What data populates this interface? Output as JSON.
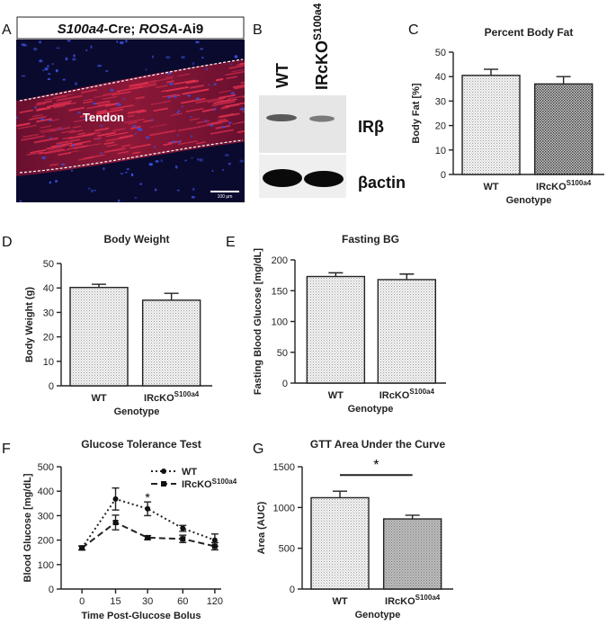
{
  "panels": {
    "a": "A",
    "b": "B",
    "c": "C",
    "d": "D",
    "e": "E",
    "f": "F",
    "g": "G"
  },
  "micro": {
    "title_gene": "S100a4",
    "title_mid": "-Cre; ",
    "title_rosa": "ROSA",
    "title_end": "-Ai9",
    "tissue_label": "Tendon",
    "scale_bar": "100 µm",
    "colors": {
      "background": "#0a0a2e",
      "fibers": "#e0304f",
      "nuclei": "#3a4fd8"
    }
  },
  "blot": {
    "lane1": "WT",
    "lane2": "IRcKO",
    "lane2_sup": "S100a4",
    "band1": "IRβ",
    "band2": "βactin"
  },
  "chart_data": [
    {
      "id": "C",
      "type": "bar",
      "title": "Percent Body Fat",
      "ylabel": "Body Fat [%]",
      "xlabel": "Genotype",
      "categories": [
        "WT",
        "IRcKO"
      ],
      "category_sup": [
        "",
        "S100a4"
      ],
      "values": [
        40.5,
        37
      ],
      "errors": [
        2.5,
        3
      ],
      "ylim": [
        0,
        50
      ],
      "yticks": [
        0,
        10,
        20,
        30,
        40,
        50
      ],
      "fills": [
        "light",
        "dark"
      ]
    },
    {
      "id": "D",
      "type": "bar",
      "title": "Body Weight",
      "ylabel": "Body Weight (g)",
      "xlabel": "Genotype",
      "categories": [
        "WT",
        "IRcKO"
      ],
      "category_sup": [
        "",
        "S100a4"
      ],
      "values": [
        40.2,
        35
      ],
      "errors": [
        1.3,
        2.8
      ],
      "ylim": [
        0,
        50
      ],
      "yticks": [
        0,
        10,
        20,
        30,
        40,
        50
      ],
      "fills": [
        "light",
        "light"
      ]
    },
    {
      "id": "E",
      "type": "bar",
      "title": "Fasting BG",
      "ylabel": "Fasting Blood Glucose [mg/dL]",
      "xlabel": "Genotype",
      "categories": [
        "WT",
        "IRcKO"
      ],
      "category_sup": [
        "",
        "S100a4"
      ],
      "values": [
        173,
        168
      ],
      "errors": [
        6,
        9
      ],
      "ylim": [
        0,
        200
      ],
      "yticks": [
        0,
        50,
        100,
        150,
        200
      ],
      "fills": [
        "light",
        "light"
      ]
    },
    {
      "id": "F",
      "type": "line",
      "title": "Glucose Tolerance Test",
      "ylabel": "Blood Glucose [mg/dL]",
      "xlabel": "Time Post-Glucose Bolus",
      "x": [
        0,
        15,
        30,
        60,
        120
      ],
      "xticks": [
        "0",
        "15",
        "30",
        "60",
        "120"
      ],
      "ylim": [
        0,
        500
      ],
      "yticks": [
        0,
        100,
        200,
        300,
        400,
        500
      ],
      "annotation": "*",
      "annotation_x": 30,
      "annotation_y": 375,
      "series": [
        {
          "name": "WT",
          "sup": "",
          "values": [
            168,
            368,
            328,
            248,
            200
          ],
          "errors": [
            8,
            45,
            28,
            12,
            25
          ],
          "style": "dotted-circle"
        },
        {
          "name": "IRcKO",
          "sup": "S100a4",
          "values": [
            168,
            272,
            210,
            205,
            175
          ],
          "errors": [
            8,
            30,
            8,
            15,
            15
          ],
          "style": "dashed-square"
        }
      ]
    },
    {
      "id": "G",
      "type": "bar",
      "title": "GTT Area Under the Curve",
      "ylabel": "Area (AUC)",
      "xlabel": "Genotype",
      "categories": [
        "WT",
        "IRcKO"
      ],
      "category_sup": [
        "",
        "S100a4"
      ],
      "values": [
        1120,
        860
      ],
      "errors": [
        80,
        45
      ],
      "ylim": [
        0,
        1500
      ],
      "yticks": [
        0,
        500,
        1000,
        1500
      ],
      "fills": [
        "light",
        "gray"
      ],
      "annotation": "*"
    }
  ]
}
